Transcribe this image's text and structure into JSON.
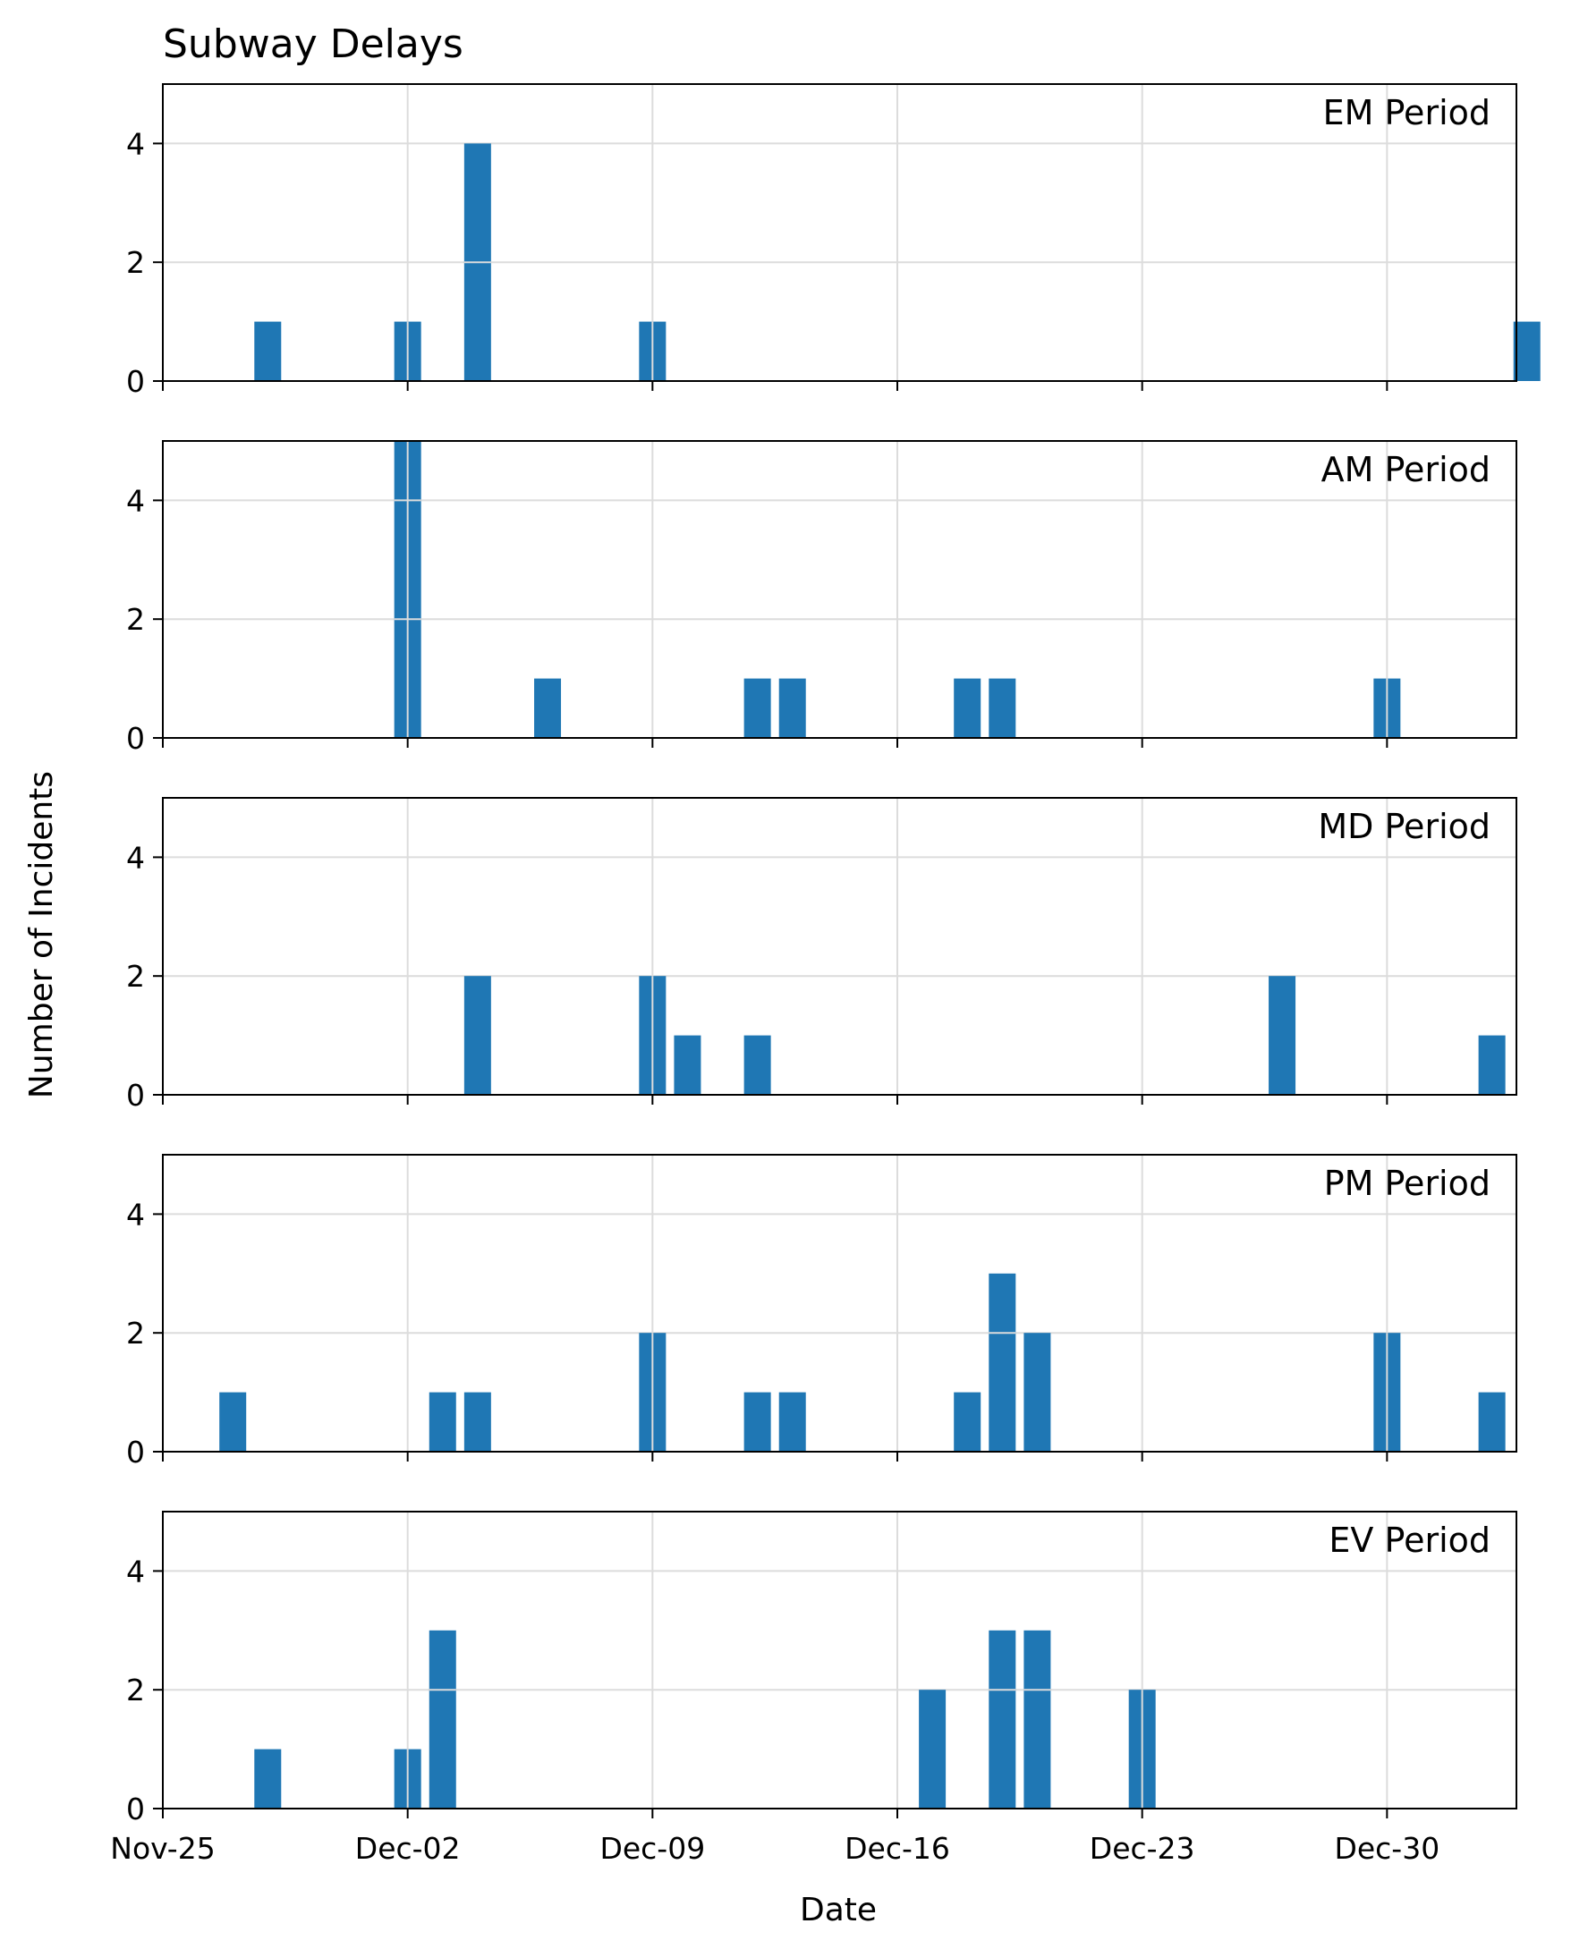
{
  "chart_data": {
    "type": "bar",
    "title": "Subway Delays",
    "xlabel": "Date",
    "ylabel": "Number of Incidents",
    "x_start": "2019-11-25",
    "xlim_days": [
      0,
      38.7
    ],
    "ylim": [
      0,
      5
    ],
    "y_ticks": [
      0,
      2,
      4
    ],
    "x_tick_labels": [
      "Nov-25",
      "Dec-02",
      "Dec-09",
      "Dec-16",
      "Dec-23",
      "Dec-30"
    ],
    "x_tick_days": [
      0,
      7,
      14,
      21,
      28,
      35
    ],
    "grid": true,
    "bar_color": "#1f77b4",
    "grid_color": "#dcdcdc",
    "series": [
      {
        "name": "EM Period",
        "x": [
          "2019-11-28",
          "2019-12-02",
          "2019-12-04",
          "2019-12-09",
          "2020-01-03"
        ],
        "values": [
          1,
          1,
          4,
          1,
          1
        ]
      },
      {
        "name": "AM Period",
        "x": [
          "2019-12-02",
          "2019-12-06",
          "2019-12-12",
          "2019-12-13",
          "2019-12-18",
          "2019-12-19",
          "2019-12-30"
        ],
        "values": [
          5,
          1,
          1,
          1,
          1,
          1,
          1
        ]
      },
      {
        "name": "MD Period",
        "x": [
          "2019-12-04",
          "2019-12-09",
          "2019-12-10",
          "2019-12-12",
          "2019-12-27",
          "2020-01-02"
        ],
        "values": [
          2,
          2,
          1,
          1,
          2,
          1
        ]
      },
      {
        "name": "PM Period",
        "x": [
          "2019-11-27",
          "2019-12-03",
          "2019-12-04",
          "2019-12-09",
          "2019-12-12",
          "2019-12-13",
          "2019-12-18",
          "2019-12-19",
          "2019-12-20",
          "2019-12-30",
          "2020-01-02"
        ],
        "values": [
          1,
          1,
          1,
          2,
          1,
          1,
          1,
          3,
          2,
          2,
          1
        ]
      },
      {
        "name": "EV Period",
        "x": [
          "2019-11-28",
          "2019-12-02",
          "2019-12-03",
          "2019-12-17",
          "2019-12-19",
          "2019-12-20",
          "2019-12-23"
        ],
        "values": [
          1,
          1,
          3,
          2,
          3,
          3,
          2
        ]
      }
    ]
  }
}
